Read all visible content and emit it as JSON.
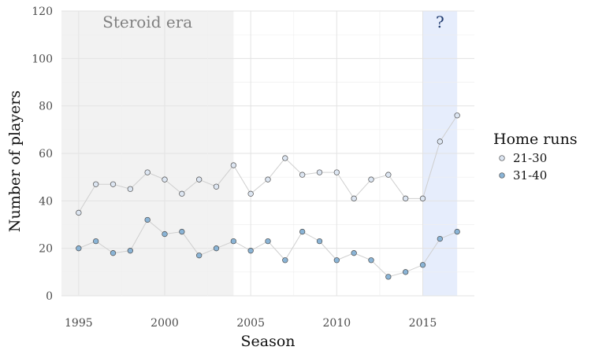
{
  "chart_data": {
    "type": "line",
    "xlabel": "Season",
    "ylabel": "Number of players",
    "xlim": [
      1994,
      2018
    ],
    "ylim": [
      0,
      120
    ],
    "x_ticks": [
      1995,
      2000,
      2005,
      2010,
      2015
    ],
    "y_ticks": [
      0,
      20,
      40,
      60,
      80,
      100,
      120
    ],
    "grid": true,
    "legend": {
      "title": "Home runs",
      "placement": "right"
    },
    "x": [
      1995,
      1996,
      1997,
      1998,
      1999,
      2000,
      2001,
      2002,
      2003,
      2004,
      2005,
      2006,
      2007,
      2008,
      2009,
      2010,
      2011,
      2012,
      2013,
      2014,
      2015,
      2016,
      2017
    ],
    "series": [
      {
        "name": "21-30",
        "color": "#dde6f2",
        "values": [
          35,
          47,
          47,
          45,
          52,
          49,
          43,
          49,
          46,
          55,
          43,
          49,
          58,
          51,
          52,
          52,
          41,
          49,
          51,
          41,
          41,
          65,
          76
        ]
      },
      {
        "name": "31-40",
        "color": "#8ab4d6",
        "values": [
          20,
          23,
          18,
          19,
          32,
          26,
          27,
          17,
          20,
          23,
          19,
          23,
          15,
          27,
          23,
          15,
          18,
          15,
          8,
          10,
          13,
          24,
          27
        ]
      }
    ],
    "shaded_regions": [
      {
        "label": "Steroid era",
        "x_start": 1994,
        "x_end": 2004,
        "color": "#f2f2f2",
        "label_color": "#808080"
      },
      {
        "label": "?",
        "x_start": 2015,
        "x_end": 2017,
        "color": "#e6edfc",
        "label_color": "#1f3a6e"
      }
    ]
  }
}
